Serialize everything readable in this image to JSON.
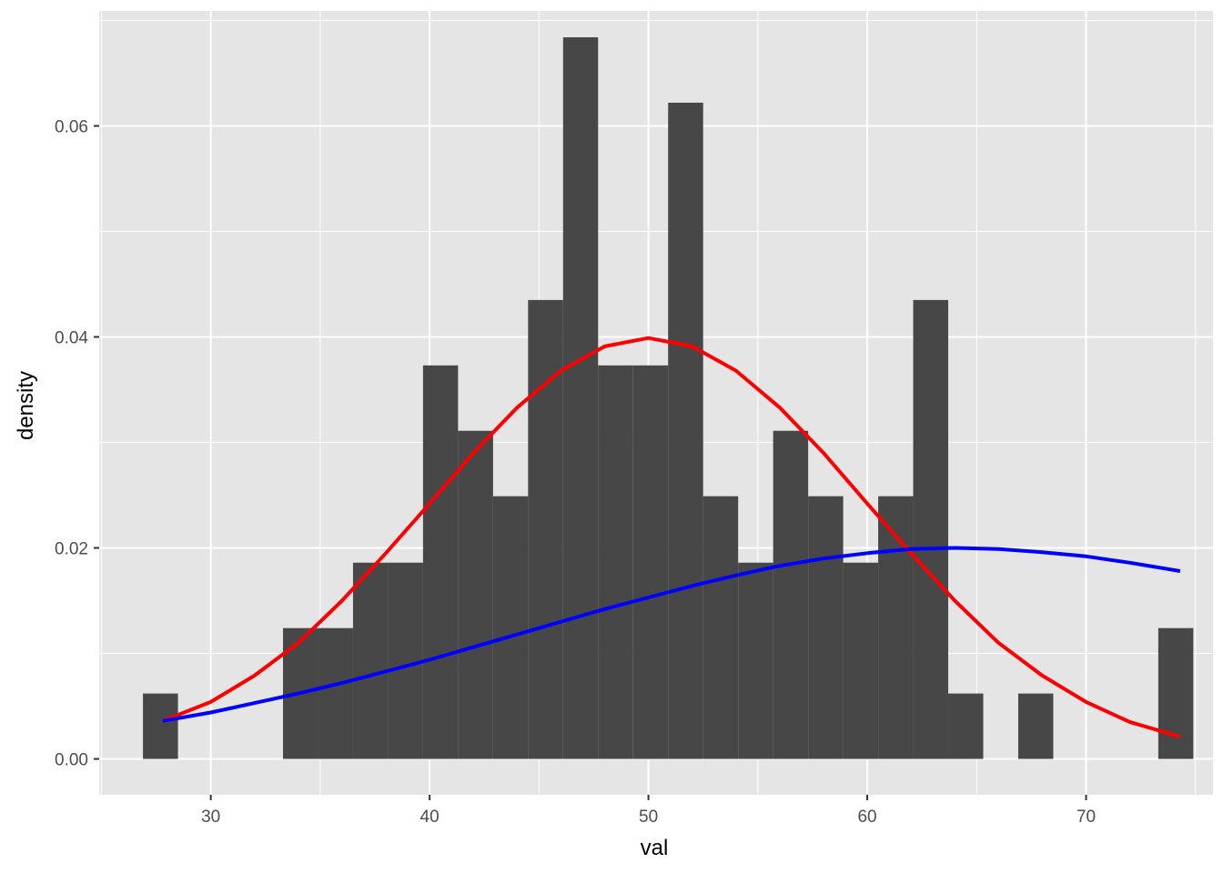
{
  "chart_data": {
    "type": "bar",
    "title": "",
    "xlabel": "val",
    "ylabel": "density",
    "xlim": [
      24.9,
      75.8
    ],
    "ylim": [
      -0.0034,
      0.0709
    ],
    "x_ticks": [
      30,
      40,
      50,
      60,
      70
    ],
    "x_tick_labels": [
      "30",
      "40",
      "50",
      "60",
      "70"
    ],
    "y_ticks": [
      0.0,
      0.02,
      0.04,
      0.06
    ],
    "y_tick_labels": [
      "0.00",
      "0.02",
      "0.04",
      "0.06"
    ],
    "grid": true,
    "legend": "none",
    "bin_width": 1.6,
    "bins": [
      {
        "x": 27.7,
        "y": 0.0062
      },
      {
        "x": 29.3,
        "y": 0.0
      },
      {
        "x": 30.9,
        "y": 0.0
      },
      {
        "x": 32.5,
        "y": 0.0
      },
      {
        "x": 34.1,
        "y": 0.0124
      },
      {
        "x": 35.7,
        "y": 0.0124
      },
      {
        "x": 37.3,
        "y": 0.0186
      },
      {
        "x": 38.9,
        "y": 0.0186
      },
      {
        "x": 40.5,
        "y": 0.0373
      },
      {
        "x": 42.1,
        "y": 0.0311
      },
      {
        "x": 43.7,
        "y": 0.0249
      },
      {
        "x": 45.3,
        "y": 0.0435
      },
      {
        "x": 46.9,
        "y": 0.0684
      },
      {
        "x": 48.5,
        "y": 0.0373
      },
      {
        "x": 50.1,
        "y": 0.0373
      },
      {
        "x": 51.7,
        "y": 0.0622
      },
      {
        "x": 53.3,
        "y": 0.0249
      },
      {
        "x": 54.9,
        "y": 0.0186
      },
      {
        "x": 56.5,
        "y": 0.0311
      },
      {
        "x": 58.1,
        "y": 0.0249
      },
      {
        "x": 59.7,
        "y": 0.0186
      },
      {
        "x": 61.3,
        "y": 0.0249
      },
      {
        "x": 62.9,
        "y": 0.0435
      },
      {
        "x": 64.5,
        "y": 0.0062
      },
      {
        "x": 66.1,
        "y": 0.0
      },
      {
        "x": 67.7,
        "y": 0.0062
      },
      {
        "x": 69.3,
        "y": 0.0
      },
      {
        "x": 70.9,
        "y": 0.0
      },
      {
        "x": 72.5,
        "y": 0.0
      },
      {
        "x": 74.1,
        "y": 0.0124
      }
    ],
    "series": [
      {
        "kind": "line",
        "color": "#ff0000",
        "points": [
          [
            27.8,
            0.0036
          ],
          [
            30,
            0.0054
          ],
          [
            32,
            0.0079
          ],
          [
            34,
            0.011
          ],
          [
            36,
            0.015
          ],
          [
            38,
            0.0195
          ],
          [
            40,
            0.0242
          ],
          [
            42,
            0.029
          ],
          [
            44,
            0.0333
          ],
          [
            46,
            0.0368
          ],
          [
            48,
            0.0391
          ],
          [
            50,
            0.0399
          ],
          [
            52,
            0.0391
          ],
          [
            54,
            0.0368
          ],
          [
            56,
            0.0333
          ],
          [
            58,
            0.029
          ],
          [
            60,
            0.0242
          ],
          [
            62,
            0.0195
          ],
          [
            64,
            0.015
          ],
          [
            66,
            0.011
          ],
          [
            68,
            0.0079
          ],
          [
            70,
            0.0054
          ],
          [
            72,
            0.0035
          ],
          [
            74.3,
            0.0021
          ]
        ]
      },
      {
        "kind": "line",
        "color": "#0000ff",
        "points": [
          [
            27.8,
            0.0036
          ],
          [
            30,
            0.0044
          ],
          [
            32,
            0.0053
          ],
          [
            34,
            0.0062
          ],
          [
            36,
            0.0072
          ],
          [
            38,
            0.0083
          ],
          [
            40,
            0.0094
          ],
          [
            42,
            0.0106
          ],
          [
            44,
            0.0118
          ],
          [
            46,
            0.013
          ],
          [
            48,
            0.0142
          ],
          [
            50,
            0.0153
          ],
          [
            52,
            0.0164
          ],
          [
            54,
            0.0174
          ],
          [
            56,
            0.0183
          ],
          [
            58,
            0.019
          ],
          [
            60,
            0.0195
          ],
          [
            62,
            0.0199
          ],
          [
            64,
            0.02
          ],
          [
            66,
            0.0199
          ],
          [
            68,
            0.0196
          ],
          [
            70,
            0.0192
          ],
          [
            72,
            0.0186
          ],
          [
            74.3,
            0.0178
          ]
        ]
      }
    ]
  },
  "colors": {
    "panel_background": "#e5e5e5",
    "grid_line": "#ffffff",
    "bar_fill": "#474747",
    "tick_mark": "#333333"
  }
}
